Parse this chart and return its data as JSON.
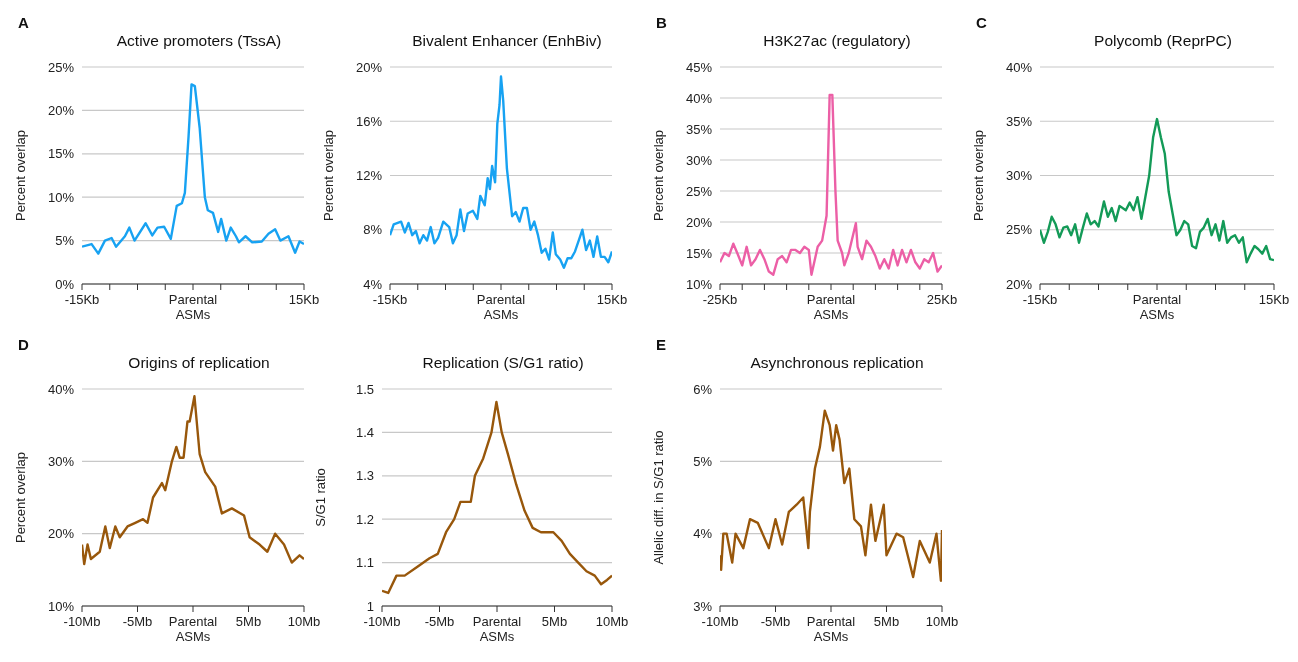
{
  "chart_data": [
    {
      "type": "line",
      "title": "Active promoters (TssA)",
      "ylabel": "Percent overlap",
      "annotations": [
        "A"
      ],
      "color": "#17a2f2",
      "grid": "y",
      "x": [
        -15,
        -13.7,
        -12.8,
        -11.9,
        -11,
        -10.4,
        -9.2,
        -8.6,
        -7.9,
        -6.4,
        -5.5,
        -4.8,
        -3.9,
        -3,
        -2.2,
        -1.5,
        -1.1,
        -0.6,
        -0.2,
        0.25,
        0.9,
        1.6,
        2,
        2.7,
        3.4,
        3.8,
        4.5,
        5.1,
        5.8,
        6.2,
        7.1,
        8,
        9.3,
        10.2,
        11.1,
        11.8,
        12.9,
        13.8,
        14.4,
        15
      ],
      "values": [
        4.3,
        4.6,
        3.5,
        5,
        5.3,
        4.3,
        5.5,
        6.5,
        5,
        7,
        5.6,
        6.5,
        6.6,
        5.2,
        9,
        9.3,
        10.5,
        17,
        23,
        22.8,
        18,
        10,
        8.5,
        8.2,
        6,
        7.5,
        5,
        6.5,
        5.5,
        4.8,
        5.5,
        4.8,
        4.9,
        5.8,
        6.3,
        5,
        5.5,
        3.6,
        4.9,
        4.6
      ],
      "xlim": [
        -15,
        15
      ],
      "xticks": [
        {
          "value": -15,
          "label": "-15Kb"
        },
        {
          "value": -11.25,
          "label": null
        },
        {
          "value": -7.5,
          "label": null
        },
        {
          "value": -3.75,
          "label": null
        },
        {
          "value": 0,
          "label": "Parental ASMs"
        },
        {
          "value": 3.75,
          "label": null
        },
        {
          "value": 7.5,
          "label": null
        },
        {
          "value": 11.25,
          "label": null
        },
        {
          "value": 15,
          "label": "15Kb"
        }
      ],
      "ylim": [
        0,
        25
      ],
      "yticks": [
        {
          "value": 0,
          "label": "0%"
        },
        {
          "value": 5,
          "label": "5%"
        },
        {
          "value": 10,
          "label": "10%"
        },
        {
          "value": 15,
          "label": "15%"
        },
        {
          "value": 20,
          "label": "20%"
        },
        {
          "value": 25,
          "label": "25%"
        }
      ]
    },
    {
      "type": "line",
      "title": "Bivalent Enhancer (EnhBiv)",
      "ylabel": "Percent overlap",
      "color": "#17a2f2",
      "grid": "y",
      "x": [
        -15,
        -14.5,
        -13.5,
        -13,
        -12.5,
        -12,
        -11.5,
        -11,
        -10.5,
        -10,
        -9.5,
        -9,
        -8.5,
        -7.8,
        -7,
        -6.5,
        -6,
        -5.5,
        -5,
        -4.5,
        -3.8,
        -3.2,
        -2.8,
        -2.2,
        -1.8,
        -1.5,
        -1.2,
        -0.8,
        -0.5,
        -0.2,
        0,
        0.3,
        0.8,
        1.5,
        2,
        2.5,
        3,
        3.5,
        4,
        4.5,
        5,
        5.5,
        6,
        6.5,
        7,
        7.4,
        8,
        8.5,
        9,
        9.5,
        10,
        10.5,
        11,
        11.5,
        12,
        12.5,
        13,
        13.5,
        14,
        14.5,
        15
      ],
      "values": [
        7.6,
        8.4,
        8.6,
        7.8,
        8.5,
        7.6,
        7.9,
        7,
        7.6,
        7.2,
        8.2,
        7,
        7.4,
        8.6,
        8.2,
        7,
        7.6,
        9.5,
        7.9,
        9.2,
        9.4,
        8.8,
        10.5,
        9.8,
        11.8,
        11,
        12.7,
        11.5,
        15.8,
        17.2,
        19.3,
        17.5,
        12.5,
        9,
        9.3,
        8.6,
        9.6,
        9.6,
        8,
        8.6,
        7.6,
        6.3,
        6.6,
        5.8,
        7.8,
        6.2,
        5.8,
        5.2,
        5.9,
        5.9,
        6.4,
        7.2,
        8,
        6.5,
        7.2,
        6,
        7.5,
        6,
        6,
        5.6,
        6.4
      ],
      "xlim": [
        -15,
        15
      ],
      "xticks": [
        {
          "value": -15,
          "label": "-15Kb"
        },
        {
          "value": -11.25,
          "label": null
        },
        {
          "value": -7.5,
          "label": null
        },
        {
          "value": -3.75,
          "label": null
        },
        {
          "value": 0,
          "label": "Parental ASMs"
        },
        {
          "value": 3.75,
          "label": null
        },
        {
          "value": 7.5,
          "label": null
        },
        {
          "value": 11.25,
          "label": null
        },
        {
          "value": 15,
          "label": "15Kb"
        }
      ],
      "ylim": [
        4,
        20
      ],
      "yticks": [
        {
          "value": 4,
          "label": "4%"
        },
        {
          "value": 8,
          "label": "8%"
        },
        {
          "value": 12,
          "label": "12%"
        },
        {
          "value": 16,
          "label": "16%"
        },
        {
          "value": 20,
          "label": "20%"
        }
      ]
    },
    {
      "type": "line",
      "title": "H3K27ac (regulatory)",
      "ylabel": "Percent overlap",
      "annotations": [
        "B"
      ],
      "color": "#ec5fa6",
      "grid": "y",
      "x": [
        -25,
        -24,
        -23,
        -22,
        -21,
        -20,
        -19,
        -18,
        -17,
        -16,
        -15,
        -14,
        -13,
        -12,
        -11,
        -10,
        -9,
        -8,
        -7,
        -6,
        -5,
        -4.4,
        -3,
        -2,
        -1,
        -0.3,
        0.3,
        1,
        1.5,
        2.5,
        3,
        4,
        5.6,
        6,
        7,
        8,
        9,
        10,
        11,
        12,
        13,
        14,
        15,
        16,
        17,
        18,
        19,
        20,
        21,
        22,
        23,
        24,
        25
      ],
      "values": [
        13.5,
        15,
        14.5,
        16.5,
        14.8,
        13,
        16,
        13,
        14,
        15.5,
        14,
        12,
        11.5,
        14,
        14.5,
        13.5,
        15.5,
        15.5,
        15,
        16,
        15.5,
        11.5,
        16,
        17,
        21,
        40.5,
        40.5,
        25,
        17,
        15,
        13,
        15,
        19.8,
        16,
        14,
        17,
        16,
        14.5,
        12.5,
        14,
        12.5,
        15.5,
        13,
        15.5,
        13.5,
        15.5,
        13.5,
        12.5,
        14,
        13.5,
        15,
        12,
        13
      ],
      "xlim": [
        -25,
        25
      ],
      "xticks": [
        {
          "value": -25,
          "label": "-25Kb"
        },
        {
          "value": -20,
          "label": null
        },
        {
          "value": -15,
          "label": null
        },
        {
          "value": -10,
          "label": null
        },
        {
          "value": -5,
          "label": null
        },
        {
          "value": 0,
          "label": "Parental ASMs"
        },
        {
          "value": 5,
          "label": null
        },
        {
          "value": 10,
          "label": null
        },
        {
          "value": 15,
          "label": null
        },
        {
          "value": 20,
          "label": null
        },
        {
          "value": 25,
          "label": "25Kb"
        }
      ],
      "ylim": [
        10,
        45
      ],
      "yticks": [
        {
          "value": 10,
          "label": "10%"
        },
        {
          "value": 15,
          "label": "15%"
        },
        {
          "value": 20,
          "label": "20%"
        },
        {
          "value": 25,
          "label": "25%"
        },
        {
          "value": 30,
          "label": "30%"
        },
        {
          "value": 35,
          "label": "35%"
        },
        {
          "value": 40,
          "label": "40%"
        },
        {
          "value": 45,
          "label": "45%"
        }
      ]
    },
    {
      "type": "line",
      "title": "Polycomb (ReprPC)",
      "ylabel": "Percent overlap",
      "annotations": [
        "C"
      ],
      "color": "#139a57",
      "grid": "y",
      "x": [
        -15,
        -14.5,
        -14,
        -13.5,
        -13,
        -12.5,
        -12,
        -11.5,
        -11,
        -10.5,
        -10,
        -9.5,
        -9,
        -8.5,
        -8,
        -7.5,
        -6.8,
        -6.3,
        -5.8,
        -5.3,
        -4.8,
        -4,
        -3.5,
        -3,
        -2.5,
        -2,
        -1.5,
        -1,
        -0.5,
        0,
        0.5,
        1,
        1.5,
        2,
        2.5,
        3,
        3.5,
        4,
        4.5,
        5,
        5.5,
        6,
        6.5,
        7,
        7.5,
        8,
        8.5,
        9,
        9.5,
        10,
        10.5,
        11,
        11.5,
        12,
        12.5,
        13,
        13.5,
        14,
        14.5,
        15
      ],
      "values": [
        25,
        23.8,
        24.8,
        26.2,
        25.5,
        24.3,
        25.2,
        25.3,
        24.5,
        25.5,
        23.8,
        25.2,
        26.5,
        25.5,
        25.8,
        25.3,
        27.6,
        26.2,
        27,
        25.8,
        27.2,
        26.8,
        27.5,
        26.8,
        28,
        26,
        28,
        30,
        33.5,
        35.2,
        33.5,
        32,
        28.5,
        26.5,
        24.5,
        25,
        25.8,
        25.5,
        23.5,
        23.3,
        24.8,
        25.2,
        26,
        24.5,
        25.5,
        24,
        25.8,
        23.8,
        24.3,
        24.5,
        23.8,
        24.3,
        22,
        22.8,
        23.5,
        23.2,
        22.8,
        23.5,
        22.3,
        22.2
      ],
      "xlim": [
        -15,
        15
      ],
      "xticks": [
        {
          "value": -15,
          "label": "-15Kb"
        },
        {
          "value": -11.25,
          "label": null
        },
        {
          "value": -7.5,
          "label": null
        },
        {
          "value": -3.75,
          "label": null
        },
        {
          "value": 0,
          "label": "Parental ASMs"
        },
        {
          "value": 3.75,
          "label": null
        },
        {
          "value": 7.5,
          "label": null
        },
        {
          "value": 11.25,
          "label": null
        },
        {
          "value": 15,
          "label": "15Kb"
        }
      ],
      "ylim": [
        20,
        40
      ],
      "yticks": [
        {
          "value": 20,
          "label": "20%"
        },
        {
          "value": 25,
          "label": "25%"
        },
        {
          "value": 30,
          "label": "30%"
        },
        {
          "value": 35,
          "label": "35%"
        },
        {
          "value": 40,
          "label": "40%"
        }
      ]
    },
    {
      "type": "line",
      "title": "Origins of replication",
      "ylabel": "Percent overlap",
      "annotations": [
        "D"
      ],
      "color": "#98570b",
      "grid": "y",
      "x": [
        -10,
        -9.8,
        -9.5,
        -9.2,
        -8.4,
        -7.9,
        -7.5,
        -7,
        -6.6,
        -5.9,
        -5.2,
        -4.5,
        -4.1,
        -3.6,
        -2.8,
        -2.5,
        -1.9,
        -1.5,
        -1.2,
        -0.85,
        -0.5,
        -0.3,
        0.13,
        0.6,
        1.1,
        2,
        2.6,
        3.5,
        4.6,
        5.1,
        6,
        6.7,
        7.4,
        8.2,
        8.9,
        9.6,
        10
      ],
      "values": [
        18.5,
        15.8,
        18.5,
        16.5,
        17.5,
        21,
        18,
        21,
        19.5,
        21,
        21.5,
        22,
        21.5,
        25,
        27,
        26,
        30,
        32,
        30.5,
        30.5,
        35.5,
        35.5,
        39,
        31,
        28.5,
        26.5,
        22.8,
        23.5,
        22.5,
        19.5,
        18.5,
        17.5,
        20,
        18.5,
        16,
        17,
        16.5
      ],
      "xlim": [
        -10,
        10
      ],
      "xticks": [
        {
          "value": -10,
          "label": "-10Mb"
        },
        {
          "value": -5,
          "label": "-5Mb"
        },
        {
          "value": 0,
          "label": "Parental ASMs"
        },
        {
          "value": 5,
          "label": "5Mb"
        },
        {
          "value": 10,
          "label": "10Mb"
        }
      ],
      "ylim": [
        10,
        40
      ],
      "yticks": [
        {
          "value": 10,
          "label": "10%"
        },
        {
          "value": 20,
          "label": "20%"
        },
        {
          "value": 30,
          "label": "30%"
        },
        {
          "value": 40,
          "label": "40%"
        }
      ]
    },
    {
      "type": "line",
      "title": "Replication (S/G1 ratio)",
      "ylabel": "S/G1 ratio",
      "color": "#98570b",
      "grid": "y",
      "x": [
        -10,
        -9.46,
        -8.74,
        -8.03,
        -6.95,
        -5.87,
        -5.15,
        -4.43,
        -3.72,
        -3.18,
        -2.28,
        -1.92,
        -1.2,
        -0.48,
        -0.05,
        0.41,
        0.95,
        1.67,
        2.39,
        3.1,
        3.82,
        4.9,
        5.62,
        6.34,
        7.06,
        7.78,
        8.5,
        9.05,
        9.57,
        10
      ],
      "values": [
        1.035,
        1.03,
        1.07,
        1.07,
        1.09,
        1.11,
        1.12,
        1.17,
        1.2,
        1.24,
        1.24,
        1.3,
        1.34,
        1.4,
        1.47,
        1.4,
        1.35,
        1.28,
        1.22,
        1.18,
        1.17,
        1.17,
        1.15,
        1.12,
        1.1,
        1.08,
        1.07,
        1.05,
        1.06,
        1.07
      ],
      "xlim": [
        -10,
        10
      ],
      "xticks": [
        {
          "value": -10,
          "label": "-10Mb"
        },
        {
          "value": -5,
          "label": "-5Mb"
        },
        {
          "value": 0,
          "label": "Parental ASMs"
        },
        {
          "value": 5,
          "label": "5Mb"
        },
        {
          "value": 10,
          "label": "10Mb"
        }
      ],
      "ylim": [
        1,
        1.5
      ],
      "yticks": [
        1,
        1.1,
        1.2,
        1.3,
        1.4,
        1.5
      ]
    },
    {
      "type": "line",
      "title": "Asynchronous replication",
      "ylabel": "Allelic diff. in S/G1 ratio",
      "annotations": [
        "E"
      ],
      "color": "#98570b",
      "grid": "y",
      "x": [
        -10,
        -9.9,
        -9.7,
        -9.4,
        -8.9,
        -8.6,
        -7.9,
        -7.3,
        -6.6,
        -5.6,
        -5,
        -4.4,
        -3.8,
        -3.1,
        -2.5,
        -2.04,
        -1.9,
        -1.45,
        -1,
        -0.56,
        -0.12,
        0.18,
        0.47,
        0.77,
        1.2,
        1.65,
        2.1,
        2.7,
        3.1,
        3.6,
        4,
        4.75,
        5,
        5.9,
        6.5,
        7.4,
        8,
        8.9,
        9.5,
        9.9,
        10
      ],
      "values": [
        3.7,
        3.5,
        4,
        4,
        3.6,
        4,
        3.8,
        4.2,
        4.15,
        3.8,
        4.2,
        3.85,
        4.3,
        4.4,
        4.5,
        3.8,
        4.3,
        4.9,
        5.2,
        5.7,
        5.5,
        5.15,
        5.5,
        5.3,
        4.7,
        4.9,
        4.2,
        4.1,
        3.7,
        4.4,
        3.9,
        4.4,
        3.7,
        4,
        3.95,
        3.4,
        3.9,
        3.6,
        4,
        3.35,
        4.05
      ],
      "xlim": [
        -10,
        10
      ],
      "xticks": [
        {
          "value": -10,
          "label": "-10Mb"
        },
        {
          "value": -5,
          "label": "-5Mb"
        },
        {
          "value": 0,
          "label": "Parental ASMs"
        },
        {
          "value": 5,
          "label": "5Mb"
        },
        {
          "value": 10,
          "label": "10Mb"
        }
      ],
      "ylim": [
        3,
        6
      ],
      "yticks": [
        {
          "value": 3,
          "label": "3%"
        },
        {
          "value": 4,
          "label": "4%"
        },
        {
          "value": 5,
          "label": "5%"
        },
        {
          "value": 6,
          "label": "6%"
        }
      ]
    }
  ]
}
